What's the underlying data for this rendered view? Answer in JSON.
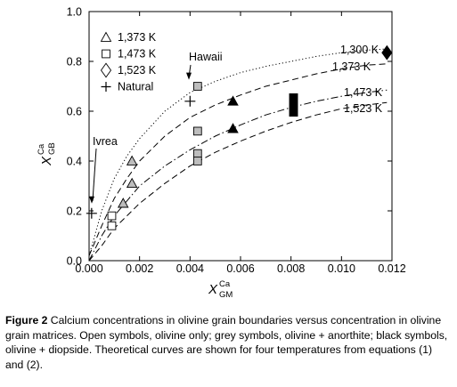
{
  "chart_data": {
    "type": "scatter",
    "xlim": [
      0,
      0.012
    ],
    "ylim": [
      0,
      1.0
    ],
    "x_ticks": [
      "0.000",
      "0.002",
      "0.004",
      "0.006",
      "0.008",
      "0.010",
      "0.012"
    ],
    "y_ticks": [
      "0.0",
      "0.2",
      "0.4",
      "0.6",
      "0.8",
      "1.0"
    ],
    "x_tick_values": [
      0,
      0.002,
      0.004,
      0.006,
      0.008,
      0.01,
      0.012
    ],
    "y_tick_values": [
      0,
      0.2,
      0.4,
      0.6,
      0.8,
      1.0
    ],
    "xlabel": {
      "base": "X",
      "sup": "Ca",
      "sub": "GM"
    },
    "ylabel": {
      "base": "X",
      "sup": "Ca",
      "sub": "GB"
    },
    "grid": false,
    "legend_position": "top-left",
    "legend": [
      {
        "symbol": "triangle",
        "label": "1,373 K"
      },
      {
        "symbol": "square",
        "label": "1,473 K"
      },
      {
        "symbol": "diamond",
        "label": "1,523 K"
      },
      {
        "symbol": "cross",
        "label": "Natural"
      }
    ],
    "colors": {
      "open": "#ffffff",
      "grey": "#bdbdbd",
      "black": "#000000",
      "curve": "#000000"
    },
    "curves": [
      {
        "label": "1,300 K",
        "style": "dotted",
        "points": [
          [
            0,
            0.02
          ],
          [
            0.0005,
            0.2
          ],
          [
            0.001,
            0.33
          ],
          [
            0.0015,
            0.42
          ],
          [
            0.002,
            0.49
          ],
          [
            0.003,
            0.6
          ],
          [
            0.004,
            0.675
          ],
          [
            0.005,
            0.72
          ],
          [
            0.006,
            0.755
          ],
          [
            0.007,
            0.78
          ],
          [
            0.008,
            0.8
          ],
          [
            0.009,
            0.82
          ],
          [
            0.01,
            0.835
          ],
          [
            0.011,
            0.845
          ],
          [
            0.0118,
            0.85
          ]
        ]
      },
      {
        "label": "1,373 K",
        "style": "dashed",
        "points": [
          [
            0,
            0.02
          ],
          [
            0.0005,
            0.14
          ],
          [
            0.001,
            0.25
          ],
          [
            0.0015,
            0.33
          ],
          [
            0.002,
            0.4
          ],
          [
            0.003,
            0.5
          ],
          [
            0.004,
            0.575
          ],
          [
            0.005,
            0.625
          ],
          [
            0.006,
            0.665
          ],
          [
            0.007,
            0.7
          ],
          [
            0.008,
            0.725
          ],
          [
            0.009,
            0.75
          ],
          [
            0.01,
            0.77
          ],
          [
            0.011,
            0.785
          ],
          [
            0.0118,
            0.79
          ]
        ]
      },
      {
        "label": "1,473 K",
        "style": "dashdot",
        "points": [
          [
            0,
            0.0
          ],
          [
            0.0005,
            0.1
          ],
          [
            0.001,
            0.18
          ],
          [
            0.0015,
            0.24
          ],
          [
            0.002,
            0.3
          ],
          [
            0.003,
            0.38
          ],
          [
            0.004,
            0.445
          ],
          [
            0.005,
            0.5
          ],
          [
            0.006,
            0.545
          ],
          [
            0.007,
            0.585
          ],
          [
            0.008,
            0.615
          ],
          [
            0.009,
            0.64
          ],
          [
            0.01,
            0.66
          ],
          [
            0.011,
            0.675
          ],
          [
            0.0118,
            0.685
          ]
        ]
      },
      {
        "label": "1,523 K",
        "style": "dashed",
        "points": [
          [
            0,
            0.0
          ],
          [
            0.0005,
            0.06
          ],
          [
            0.001,
            0.13
          ],
          [
            0.0015,
            0.18
          ],
          [
            0.002,
            0.23
          ],
          [
            0.003,
            0.31
          ],
          [
            0.004,
            0.38
          ],
          [
            0.005,
            0.435
          ],
          [
            0.006,
            0.48
          ],
          [
            0.007,
            0.52
          ],
          [
            0.008,
            0.555
          ],
          [
            0.009,
            0.585
          ],
          [
            0.01,
            0.61
          ],
          [
            0.011,
            0.625
          ],
          [
            0.0118,
            0.635
          ]
        ]
      }
    ],
    "series": [
      {
        "symbol": "triangle",
        "fill": "grey",
        "points": [
          [
            0.0017,
            0.4
          ],
          [
            0.0017,
            0.31
          ],
          [
            0.00135,
            0.23
          ]
        ]
      },
      {
        "symbol": "triangle",
        "fill": "black",
        "points": [
          [
            0.0057,
            0.64
          ],
          [
            0.0057,
            0.53
          ]
        ]
      },
      {
        "symbol": "square",
        "fill": "open",
        "points": [
          [
            0.0009,
            0.18
          ],
          [
            0.0009,
            0.14
          ]
        ]
      },
      {
        "symbol": "square",
        "fill": "grey",
        "points": [
          [
            0.0043,
            0.7
          ],
          [
            0.0043,
            0.52
          ],
          [
            0.0043,
            0.43
          ],
          [
            0.0043,
            0.4
          ]
        ]
      },
      {
        "symbol": "bar",
        "fill": "black",
        "points": [
          [
            0.0081,
            0.62
          ]
        ],
        "range": [
          0.58,
          0.67
        ]
      },
      {
        "symbol": "diamond",
        "fill": "black",
        "points": [
          [
            0.0118,
            0.835
          ]
        ]
      },
      {
        "symbol": "cross",
        "fill": "open",
        "points": [
          [
            0.004,
            0.64
          ],
          [
            0.0001,
            0.19
          ]
        ]
      }
    ],
    "annotations": [
      {
        "text": "Hawaii",
        "anchor": [
          0.0042,
          0.73
        ]
      },
      {
        "text": "Ivrea",
        "anchor": [
          0.0001,
          0.24
        ]
      }
    ]
  },
  "caption": {
    "label": "Figure 2",
    "text": " Calcium concentrations in olivine grain boundaries versus concentration in olivine grain matrices. Open symbols, olivine only; grey symbols, olivine + anorthite; black symbols, olivine + diopside. Theoretical curves are shown for four temperatures from equations (1) and (2)."
  }
}
